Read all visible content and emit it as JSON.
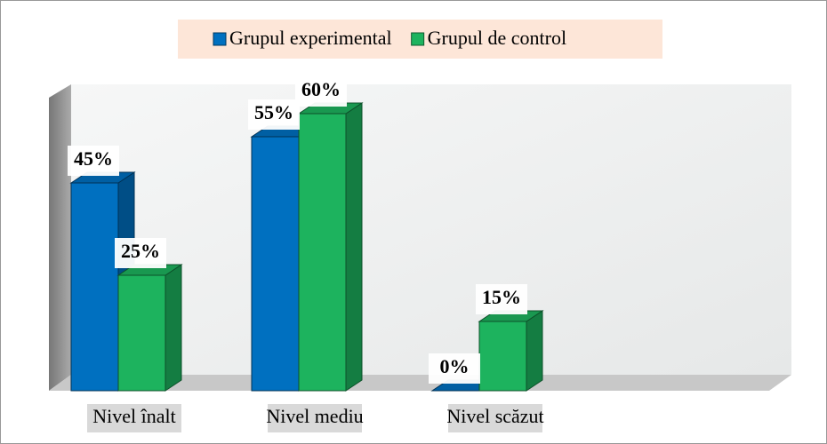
{
  "chart_data": {
    "type": "bar3d",
    "categories": [
      "Nivel înalt",
      "Nivel mediu",
      "Nivel scăzut"
    ],
    "series": [
      {
        "name": "Grupul experimental",
        "color": "#0070c0",
        "values": [
          45,
          55,
          0
        ],
        "value_labels": [
          "45%",
          "55%",
          "0%"
        ]
      },
      {
        "name": "Grupul de control",
        "color": "#1db35e",
        "values": [
          25,
          60,
          15
        ],
        "value_labels": [
          "25%",
          "60%",
          "15%"
        ]
      }
    ],
    "legend": "top"
  }
}
